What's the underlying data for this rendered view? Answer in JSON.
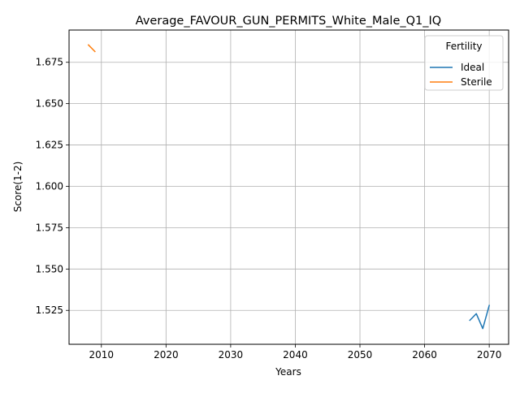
{
  "chart_data": {
    "type": "line",
    "title": "Average_FAVOUR_GUN_PERMITS_White_Male_Q1_IQ",
    "xlabel": "Years",
    "ylabel": "Score(1-2)",
    "xlim": [
      2005,
      2073
    ],
    "ylim": [
      1.5045,
      1.6945
    ],
    "xticks": [
      2010,
      2020,
      2030,
      2040,
      2050,
      2060,
      2070
    ],
    "yticks": [
      1.525,
      1.55,
      1.575,
      1.6,
      1.625,
      1.65,
      1.675
    ],
    "ytick_labels": [
      "1.525",
      "1.550",
      "1.575",
      "1.600",
      "1.625",
      "1.650",
      "1.675"
    ],
    "grid": true,
    "legend": {
      "title": "Fertility",
      "placement": "top-right"
    },
    "series": [
      {
        "name": "Ideal",
        "color": "#1f77b4",
        "x": [
          2067,
          2068,
          2069,
          2070
        ],
        "y": [
          1.519,
          1.523,
          1.514,
          1.528
        ]
      },
      {
        "name": "Sterile",
        "color": "#ff7f0e",
        "x": [
          2008,
          2009
        ],
        "y": [
          1.6855,
          1.6815
        ]
      }
    ]
  }
}
